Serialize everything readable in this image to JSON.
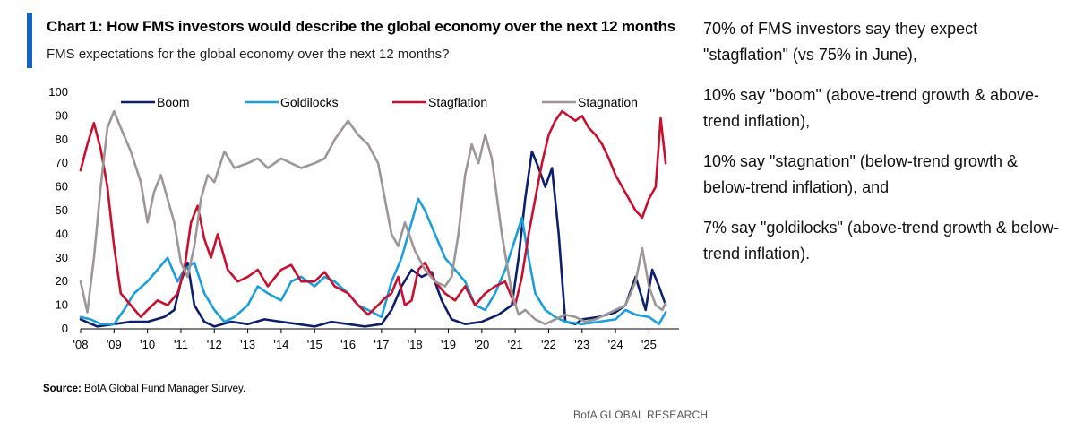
{
  "header": {
    "title": "Chart 1: How FMS investors would describe the global economy over the next 12 months",
    "subtitle": "FMS expectations for the global economy over the next 12 months?"
  },
  "footer": {
    "source_label": "Source:",
    "source_text": "BofA Global Fund Manager Survey.",
    "brand": "BofA GLOBAL RESEARCH"
  },
  "commentary": [
    "70% of FMS investors say they expect \"stagflation\" (vs 75% in June),",
    "10% say \"boom\" (above-trend growth & above-trend inflation),",
    "10% say \"stagnation\" (below-trend growth & below-trend inflation), and",
    "7% say \"goldilocks\" (above-trend growth & below-trend inflation)."
  ],
  "chart_data": {
    "type": "line",
    "title": "",
    "xlabel": "",
    "ylabel": "",
    "ylim": [
      0,
      100
    ],
    "xlim": [
      2008.0,
      2025.9
    ],
    "yticks": [
      "0",
      "10",
      "20",
      "30",
      "40",
      "50",
      "60",
      "70",
      "80",
      "90",
      "100"
    ],
    "xticks": [
      "'08",
      "'09",
      "'10",
      "'11",
      "'12",
      "'13",
      "'14",
      "'15",
      "'16",
      "'17",
      "'18",
      "'19",
      "'20",
      "'21",
      "'22",
      "'23",
      "'24",
      "'25"
    ],
    "legend_position": "top",
    "series": [
      {
        "name": "Boom",
        "color": "#0d1f6b",
        "x": [
          2008.0,
          2008.5,
          2009.0,
          2009.5,
          2010.0,
          2010.5,
          2010.8,
          2011.0,
          2011.2,
          2011.4,
          2011.7,
          2012.0,
          2012.5,
          2013.0,
          2013.5,
          2014.0,
          2014.5,
          2015.0,
          2015.5,
          2016.0,
          2016.5,
          2017.0,
          2017.3,
          2017.6,
          2017.9,
          2018.2,
          2018.5,
          2018.8,
          2019.1,
          2019.5,
          2020.0,
          2020.5,
          2020.9,
          2021.1,
          2021.3,
          2021.5,
          2021.7,
          2021.9,
          2022.1,
          2022.3,
          2022.5,
          2022.8,
          2023.0,
          2023.5,
          2024.0,
          2024.3,
          2024.6,
          2024.9,
          2025.1,
          2025.3,
          2025.5
        ],
        "y": [
          4,
          1,
          2,
          3,
          3,
          5,
          8,
          20,
          28,
          10,
          3,
          1,
          3,
          2,
          4,
          3,
          2,
          1,
          3,
          2,
          1,
          2,
          8,
          18,
          25,
          22,
          24,
          12,
          4,
          2,
          3,
          6,
          10,
          30,
          55,
          75,
          68,
          60,
          68,
          40,
          3,
          2,
          4,
          5,
          7,
          10,
          22,
          8,
          25,
          18,
          10
        ]
      },
      {
        "name": "Goldilocks",
        "color": "#1a9fdc",
        "x": [
          2008.0,
          2008.3,
          2008.6,
          2009.0,
          2009.3,
          2009.6,
          2010.0,
          2010.3,
          2010.6,
          2010.9,
          2011.1,
          2011.4,
          2011.7,
          2012.0,
          2012.3,
          2012.6,
          2013.0,
          2013.3,
          2013.6,
          2014.0,
          2014.3,
          2014.6,
          2015.0,
          2015.3,
          2015.6,
          2016.0,
          2016.3,
          2016.6,
          2017.0,
          2017.3,
          2017.6,
          2017.9,
          2018.1,
          2018.3,
          2018.6,
          2018.9,
          2019.2,
          2019.5,
          2019.8,
          2020.1,
          2020.4,
          2020.7,
          2021.0,
          2021.2,
          2021.4,
          2021.6,
          2021.9,
          2022.2,
          2022.5,
          2023.0,
          2023.5,
          2024.0,
          2024.3,
          2024.6,
          2025.0,
          2025.3,
          2025.5
        ],
        "y": [
          5,
          4,
          2,
          2,
          8,
          15,
          20,
          25,
          30,
          20,
          25,
          28,
          15,
          8,
          3,
          5,
          10,
          18,
          15,
          12,
          20,
          22,
          18,
          22,
          20,
          15,
          10,
          8,
          5,
          20,
          30,
          45,
          55,
          50,
          40,
          30,
          25,
          20,
          10,
          8,
          15,
          25,
          38,
          47,
          30,
          15,
          8,
          5,
          3,
          2,
          3,
          4,
          8,
          6,
          5,
          2,
          7
        ]
      },
      {
        "name": "Stagflation",
        "color": "#c8102e",
        "x": [
          2008.0,
          2008.2,
          2008.4,
          2008.6,
          2008.8,
          2009.0,
          2009.2,
          2009.5,
          2009.8,
          2010.0,
          2010.3,
          2010.6,
          2010.9,
          2011.1,
          2011.3,
          2011.5,
          2011.7,
          2011.9,
          2012.1,
          2012.4,
          2012.7,
          2013.0,
          2013.3,
          2013.6,
          2014.0,
          2014.3,
          2014.6,
          2015.0,
          2015.3,
          2015.6,
          2016.0,
          2016.3,
          2016.6,
          2016.9,
          2017.1,
          2017.3,
          2017.5,
          2017.7,
          2017.9,
          2018.1,
          2018.3,
          2018.6,
          2018.9,
          2019.2,
          2019.5,
          2019.8,
          2020.1,
          2020.4,
          2020.7,
          2021.0,
          2021.2,
          2021.4,
          2021.6,
          2021.8,
          2022.0,
          2022.2,
          2022.4,
          2022.6,
          2022.8,
          2023.0,
          2023.2,
          2023.4,
          2023.6,
          2023.8,
          2024.0,
          2024.2,
          2024.4,
          2024.6,
          2024.8,
          2025.0,
          2025.2,
          2025.35,
          2025.5
        ],
        "y": [
          67,
          78,
          87,
          76,
          60,
          35,
          15,
          10,
          5,
          8,
          12,
          10,
          15,
          25,
          45,
          52,
          38,
          30,
          40,
          25,
          20,
          22,
          25,
          18,
          25,
          27,
          20,
          20,
          24,
          18,
          15,
          10,
          6,
          10,
          13,
          15,
          22,
          10,
          12,
          25,
          28,
          20,
          15,
          12,
          18,
          10,
          15,
          18,
          20,
          10,
          22,
          40,
          55,
          70,
          82,
          88,
          92,
          90,
          88,
          90,
          85,
          82,
          78,
          72,
          65,
          60,
          55,
          50,
          47,
          55,
          60,
          89,
          70
        ]
      },
      {
        "name": "Stagnation",
        "color": "#9e9696",
        "x": [
          2008.0,
          2008.2,
          2008.4,
          2008.6,
          2008.8,
          2009.0,
          2009.2,
          2009.5,
          2009.8,
          2010.0,
          2010.2,
          2010.4,
          2010.6,
          2010.8,
          2011.0,
          2011.2,
          2011.4,
          2011.6,
          2011.8,
          2012.0,
          2012.3,
          2012.6,
          2013.0,
          2013.3,
          2013.6,
          2014.0,
          2014.3,
          2014.6,
          2015.0,
          2015.3,
          2015.6,
          2016.0,
          2016.3,
          2016.6,
          2016.9,
          2017.1,
          2017.3,
          2017.5,
          2017.7,
          2018.0,
          2018.3,
          2018.6,
          2018.9,
          2019.1,
          2019.3,
          2019.5,
          2019.7,
          2019.9,
          2020.1,
          2020.3,
          2020.6,
          2020.9,
          2021.1,
          2021.3,
          2021.6,
          2021.9,
          2022.2,
          2022.5,
          2022.8,
          2023.1,
          2023.4,
          2023.7,
          2024.0,
          2024.3,
          2024.6,
          2024.8,
          2025.0,
          2025.2,
          2025.4,
          2025.5
        ],
        "y": [
          20,
          7,
          30,
          60,
          85,
          92,
          85,
          75,
          62,
          45,
          58,
          65,
          55,
          45,
          28,
          22,
          35,
          55,
          65,
          62,
          75,
          68,
          70,
          72,
          68,
          72,
          70,
          68,
          70,
          72,
          80,
          88,
          82,
          78,
          70,
          55,
          40,
          35,
          45,
          33,
          25,
          20,
          18,
          22,
          40,
          65,
          78,
          70,
          82,
          72,
          40,
          15,
          6,
          8,
          4,
          2,
          4,
          6,
          5,
          3,
          4,
          6,
          8,
          10,
          20,
          34,
          18,
          10,
          8,
          11
        ]
      }
    ]
  }
}
